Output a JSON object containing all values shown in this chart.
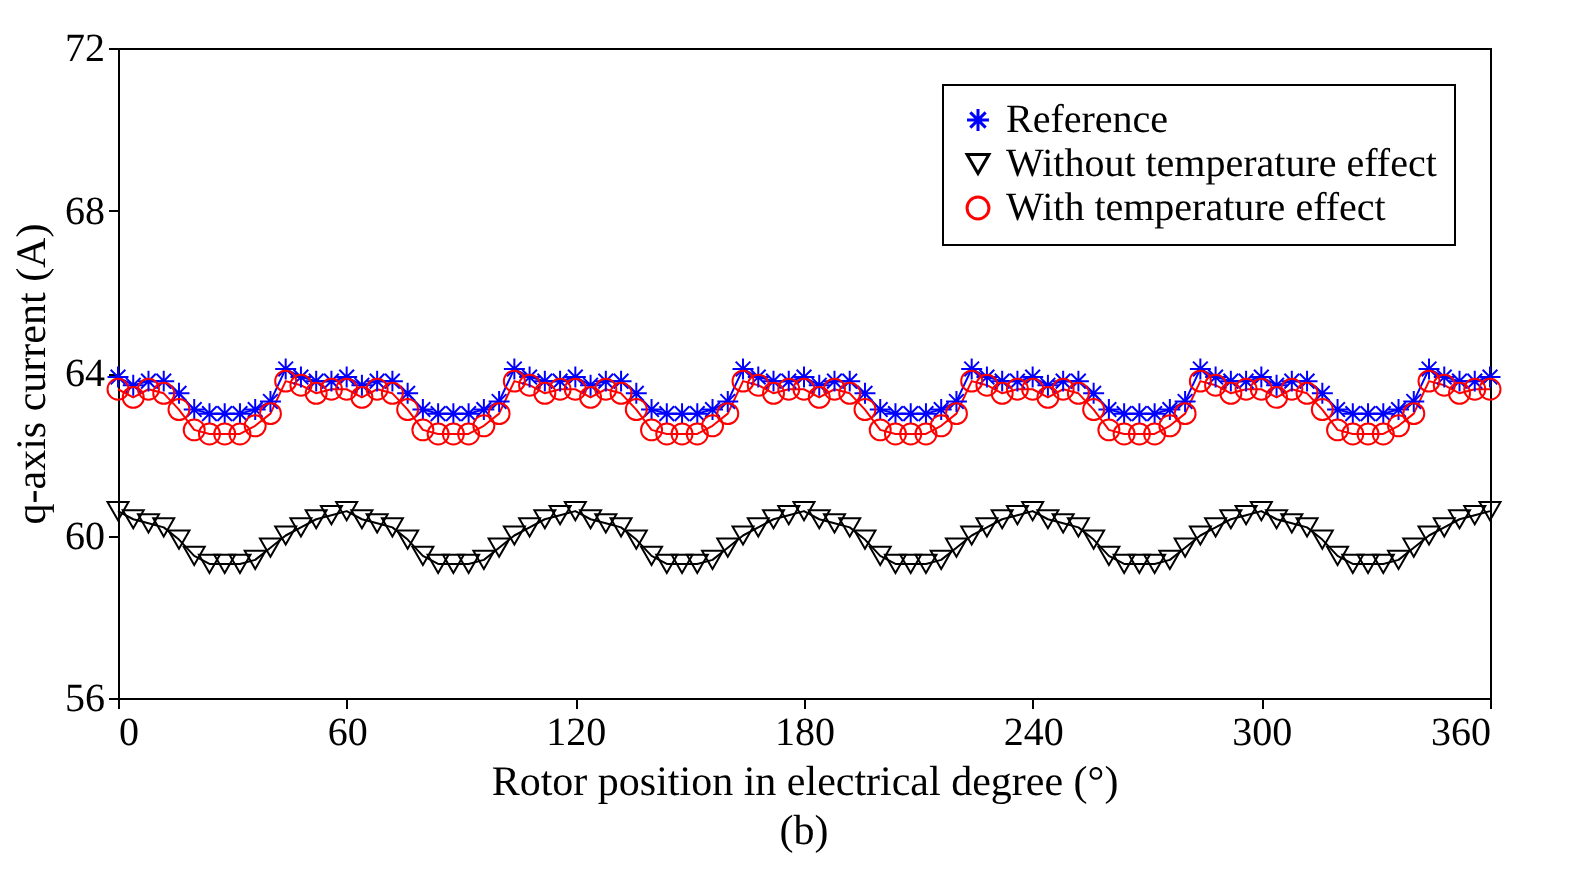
{
  "chart_data": {
    "type": "line",
    "xlabel": "Rotor position in electrical degree (°)",
    "ylabel": "q-axis current (A)",
    "annotations": [
      "(b)"
    ],
    "xlim": [
      0,
      360
    ],
    "xticks": [
      0,
      60,
      120,
      180,
      240,
      300,
      360
    ],
    "ylim": [
      56,
      72
    ],
    "yticks": [
      56,
      60,
      64,
      68,
      72
    ],
    "grid": false,
    "legend": "top right",
    "x": [
      0,
      4,
      8,
      12,
      16,
      20,
      24,
      28,
      32,
      36,
      40,
      44,
      48,
      52,
      56,
      60,
      64,
      68,
      72,
      76,
      80,
      84,
      88,
      92,
      96,
      100,
      104,
      108,
      112,
      116,
      120,
      124,
      128,
      132,
      136,
      140,
      144,
      148,
      152,
      156,
      160,
      164,
      168,
      172,
      176,
      180,
      184,
      188,
      192,
      196,
      200,
      204,
      208,
      212,
      216,
      220,
      224,
      228,
      232,
      236,
      240,
      244,
      248,
      252,
      256,
      260,
      264,
      268,
      272,
      276,
      280,
      284,
      288,
      292,
      296,
      300,
      304,
      308,
      312,
      316,
      320,
      324,
      328,
      332,
      336,
      340,
      344,
      348,
      352,
      356,
      360
    ],
    "series": [
      {
        "name": "Reference",
        "color": "#0000ff",
        "marker": "cross",
        "values": [
          63.9,
          63.7,
          63.8,
          63.8,
          63.5,
          63.1,
          63.0,
          63.0,
          63.0,
          63.1,
          63.3,
          64.1,
          63.9,
          63.8,
          63.8,
          63.9,
          63.7,
          63.8,
          63.8,
          63.5,
          63.1,
          63.0,
          63.0,
          63.0,
          63.1,
          63.3,
          64.1,
          63.9,
          63.8,
          63.8,
          63.9,
          63.7,
          63.8,
          63.8,
          63.5,
          63.1,
          63.0,
          63.0,
          63.0,
          63.1,
          63.3,
          64.1,
          63.9,
          63.8,
          63.8,
          63.9,
          63.7,
          63.8,
          63.8,
          63.5,
          63.1,
          63.0,
          63.0,
          63.0,
          63.1,
          63.3,
          64.1,
          63.9,
          63.8,
          63.8,
          63.9,
          63.7,
          63.8,
          63.8,
          63.5,
          63.1,
          63.0,
          63.0,
          63.0,
          63.1,
          63.3,
          64.1,
          63.9,
          63.8,
          63.8,
          63.9,
          63.7,
          63.8,
          63.8,
          63.5,
          63.1,
          63.0,
          63.0,
          63.0,
          63.1,
          63.3,
          64.1,
          63.9,
          63.8,
          63.8,
          63.9
        ]
      },
      {
        "name": "Without temperature effect",
        "color": "#000000",
        "marker": "triangle",
        "values": [
          60.6,
          60.4,
          60.3,
          60.2,
          59.9,
          59.5,
          59.3,
          59.3,
          59.3,
          59.4,
          59.7,
          60.0,
          60.2,
          60.4,
          60.5,
          60.6,
          60.4,
          60.3,
          60.2,
          59.9,
          59.5,
          59.3,
          59.3,
          59.3,
          59.4,
          59.7,
          60.0,
          60.2,
          60.4,
          60.5,
          60.6,
          60.4,
          60.3,
          60.2,
          59.9,
          59.5,
          59.3,
          59.3,
          59.3,
          59.4,
          59.7,
          60.0,
          60.2,
          60.4,
          60.5,
          60.6,
          60.4,
          60.3,
          60.2,
          59.9,
          59.5,
          59.3,
          59.3,
          59.3,
          59.4,
          59.7,
          60.0,
          60.2,
          60.4,
          60.5,
          60.6,
          60.4,
          60.3,
          60.2,
          59.9,
          59.5,
          59.3,
          59.3,
          59.3,
          59.4,
          59.7,
          60.0,
          60.2,
          60.4,
          60.5,
          60.6,
          60.4,
          60.3,
          60.2,
          59.9,
          59.5,
          59.3,
          59.3,
          59.3,
          59.4,
          59.7,
          60.0,
          60.2,
          60.4,
          60.5,
          60.6
        ]
      },
      {
        "name": "With temperature effect",
        "color": "#ff0000",
        "marker": "circle",
        "values": [
          63.6,
          63.4,
          63.6,
          63.5,
          63.1,
          62.6,
          62.5,
          62.5,
          62.5,
          62.7,
          63.0,
          63.8,
          63.7,
          63.5,
          63.6,
          63.6,
          63.4,
          63.6,
          63.5,
          63.1,
          62.6,
          62.5,
          62.5,
          62.5,
          62.7,
          63.0,
          63.8,
          63.7,
          63.5,
          63.6,
          63.6,
          63.4,
          63.6,
          63.5,
          63.1,
          62.6,
          62.5,
          62.5,
          62.5,
          62.7,
          63.0,
          63.8,
          63.7,
          63.5,
          63.6,
          63.6,
          63.4,
          63.6,
          63.5,
          63.1,
          62.6,
          62.5,
          62.5,
          62.5,
          62.7,
          63.0,
          63.8,
          63.7,
          63.5,
          63.6,
          63.6,
          63.4,
          63.6,
          63.5,
          63.1,
          62.6,
          62.5,
          62.5,
          62.5,
          62.7,
          63.0,
          63.8,
          63.7,
          63.5,
          63.6,
          63.6,
          63.4,
          63.6,
          63.5,
          63.1,
          62.6,
          62.5,
          62.5,
          62.5,
          62.7,
          63.0,
          63.8,
          63.7,
          63.5,
          63.6,
          63.6
        ]
      }
    ]
  }
}
